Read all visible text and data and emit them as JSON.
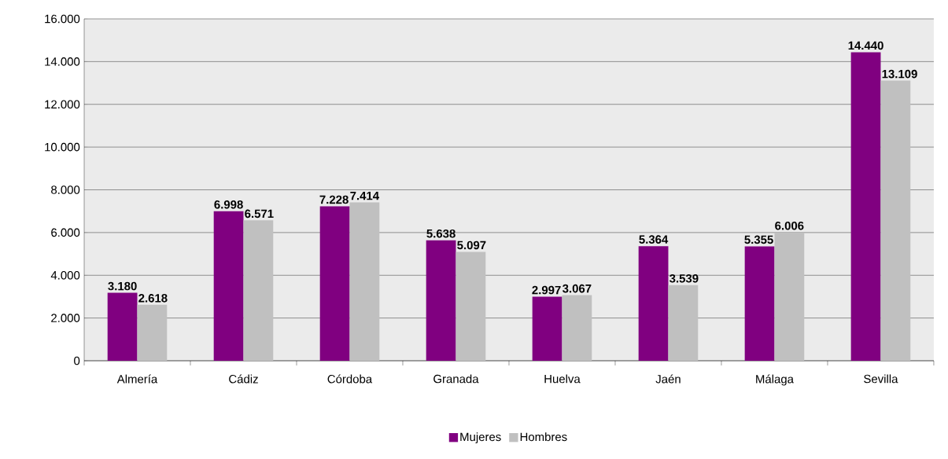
{
  "chart_data": {
    "type": "bar",
    "categories": [
      "Almería",
      "Cádiz",
      "Córdoba",
      "Granada",
      "Huelva",
      "Jaén",
      "Málaga",
      "Sevilla"
    ],
    "series": [
      {
        "name": "Mujeres",
        "color": "#800080",
        "values": [
          3180,
          6998,
          7228,
          5638,
          2997,
          5364,
          5355,
          14440
        ],
        "value_labels": [
          "3.180",
          "6.998",
          "7.228",
          "5.638",
          "2.997",
          "5.364",
          "5.355",
          "14.440"
        ]
      },
      {
        "name": "Hombres",
        "color": "#c0c0c0",
        "values": [
          2618,
          6571,
          7414,
          5097,
          3067,
          3539,
          6006,
          13109
        ],
        "value_labels": [
          "2.618",
          "6.571",
          "7.414",
          "5.097",
          "3.067",
          "3.539",
          "6.006",
          "13.109"
        ]
      }
    ],
    "ylim": [
      0,
      16000
    ],
    "yticks": [
      0,
      {
        "value": 2000,
        "label": "2.000"
      },
      {
        "value": 4000,
        "label": "4.000"
      },
      {
        "value": 6000,
        "label": "6.000"
      },
      {
        "value": 8000,
        "label": "8.000"
      },
      {
        "value": 10000,
        "label": "10.000"
      },
      {
        "value": 12000,
        "label": "12.000"
      },
      {
        "value": 14000,
        "label": "14.000"
      },
      {
        "value": 16000,
        "label": "16.000"
      }
    ],
    "grid": "y",
    "legend": "bottom"
  }
}
